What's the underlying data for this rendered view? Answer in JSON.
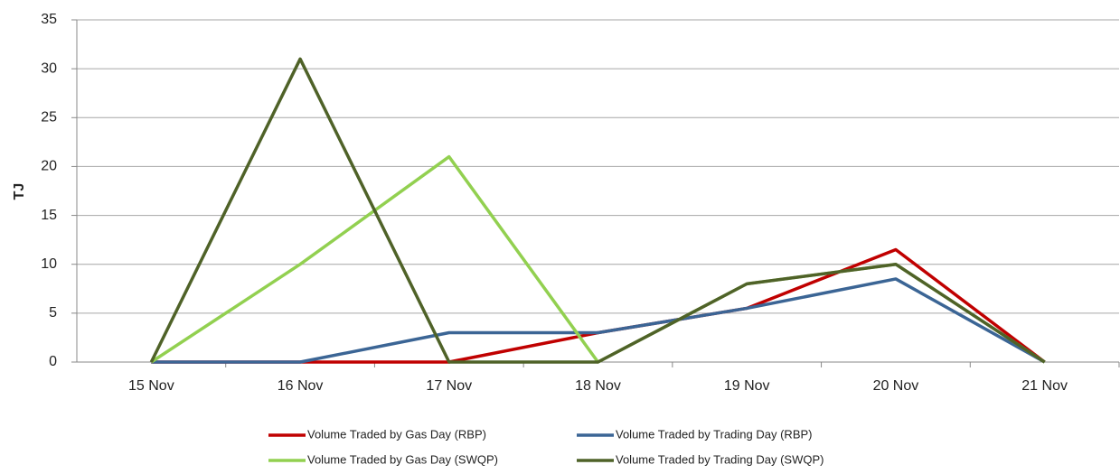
{
  "chart_data": {
    "type": "line",
    "y_label": "TJ",
    "categories": [
      "15 Nov",
      "16 Nov",
      "17 Nov",
      "18 Nov",
      "19 Nov",
      "20 Nov",
      "21 Nov"
    ],
    "series": [
      {
        "name": "Volume Traded by Gas Day (RBP)",
        "color": "#c00000",
        "values": [
          0,
          0,
          0,
          3,
          5.5,
          11.5,
          0
        ]
      },
      {
        "name": "Volume Traded by Trading Day (RBP)",
        "color": "#3b6595",
        "values": [
          0,
          0,
          3,
          3,
          5.5,
          8.5,
          0
        ]
      },
      {
        "name": "Volume Traded by Gas Day (SWQP)",
        "color": "#92d050",
        "values": [
          0,
          10,
          21,
          0,
          8,
          10,
          0
        ]
      },
      {
        "name": "Volume Traded by Trading Day (SWQP)",
        "color": "#4f6228",
        "values": [
          0,
          31,
          0,
          0,
          8,
          10,
          0
        ]
      }
    ],
    "ylim": [
      0,
      35
    ],
    "yticks": [
      0,
      5,
      10,
      15,
      20,
      25,
      30,
      35
    ],
    "grid": true
  }
}
